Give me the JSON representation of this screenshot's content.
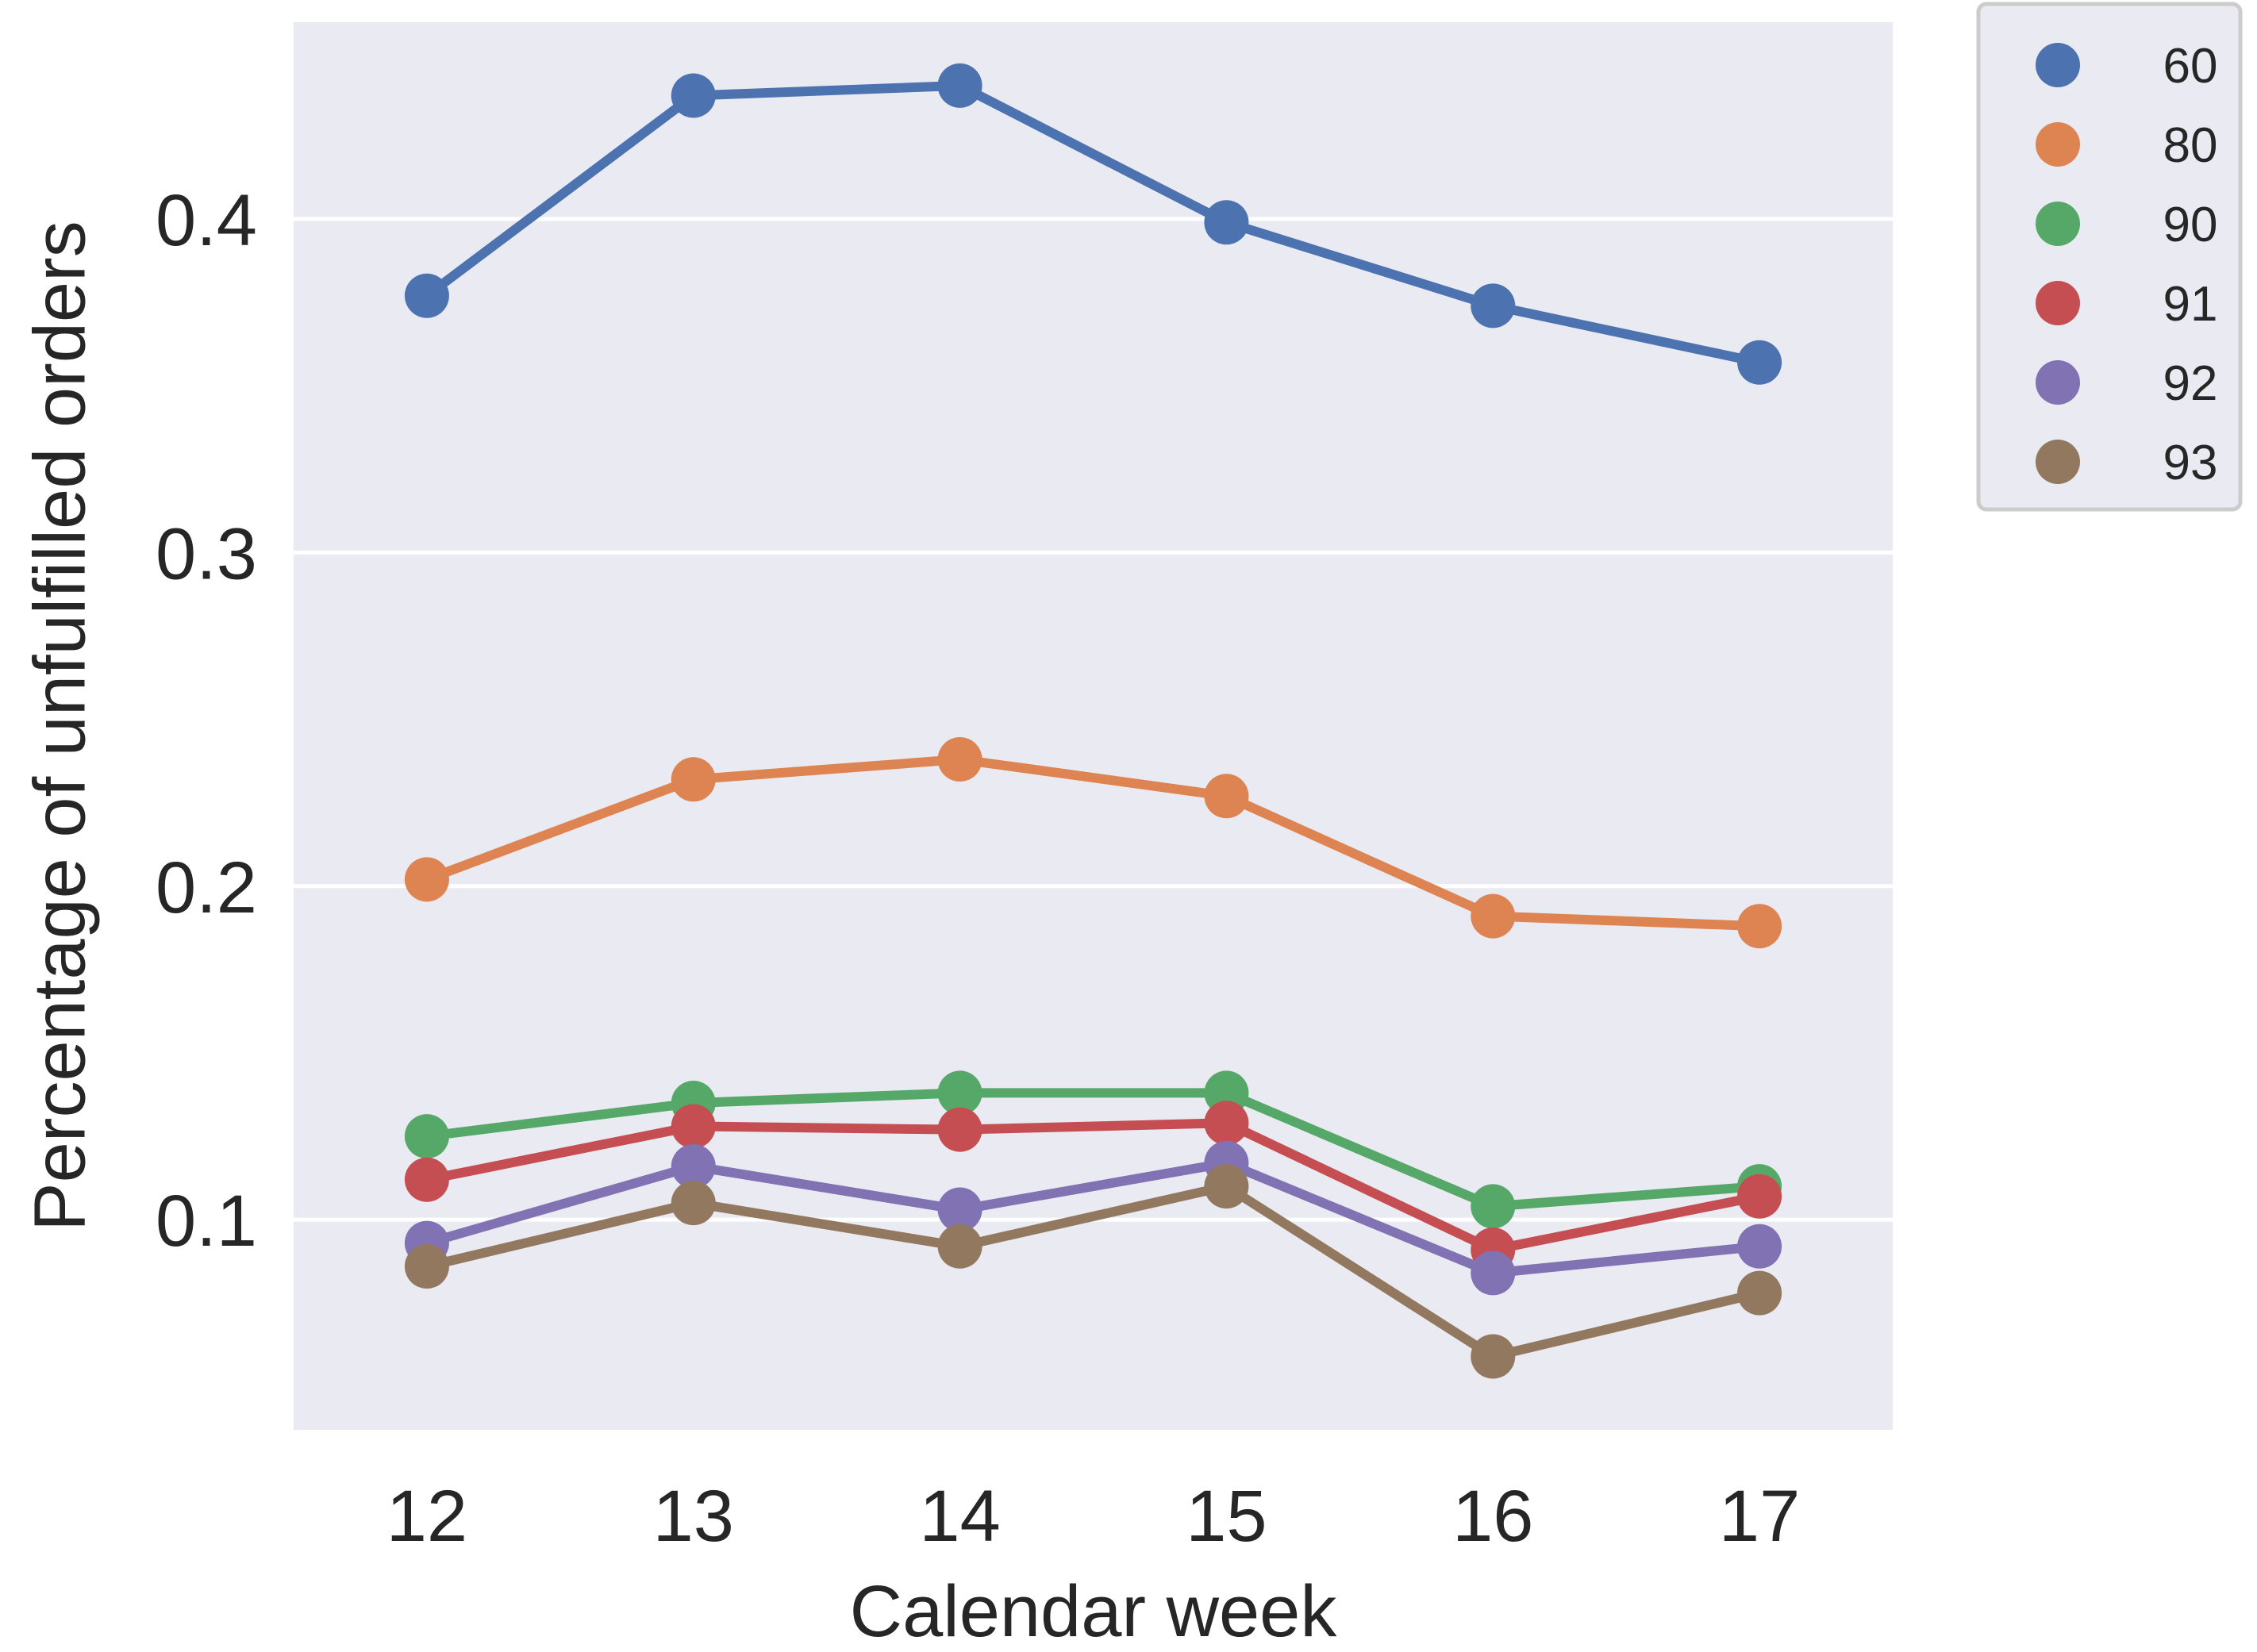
{
  "chart_data": {
    "type": "line",
    "title": "",
    "xlabel": "Calendar week",
    "ylabel": "Percentage of unfulfilled orders",
    "categories": [
      "12",
      "13",
      "14",
      "15",
      "16",
      "17"
    ],
    "xlim": [
      11.5,
      17.5
    ],
    "ylim": [
      0.037,
      0.459
    ],
    "yticks": [
      0.1,
      0.2,
      0.3,
      0.4
    ],
    "ytick_labels": [
      "0.1",
      "0.2",
      "0.3",
      "0.4"
    ],
    "grid": true,
    "legend_position": "outside-top-right",
    "series": [
      {
        "name": "60",
        "color": "#4c72b0",
        "values": [
          0.377,
          0.437,
          0.44,
          0.399,
          0.374,
          0.357
        ]
      },
      {
        "name": "80",
        "color": "#dd8452",
        "values": [
          0.202,
          0.232,
          0.238,
          0.227,
          0.191,
          0.188
        ]
      },
      {
        "name": "90",
        "color": "#55a868",
        "values": [
          0.125,
          0.135,
          0.138,
          0.138,
          0.104,
          0.11
        ]
      },
      {
        "name": "91",
        "color": "#c44e52",
        "values": [
          0.112,
          0.128,
          0.127,
          0.129,
          0.091,
          0.107
        ]
      },
      {
        "name": "92",
        "color": "#8172b3",
        "values": [
          0.093,
          0.116,
          0.103,
          0.117,
          0.084,
          0.092
        ]
      },
      {
        "name": "93",
        "color": "#937860",
        "values": [
          0.086,
          0.105,
          0.092,
          0.11,
          0.059,
          0.078
        ]
      }
    ]
  },
  "colors": {
    "plot_background": "#eaeaf2",
    "grid": "#ffffff",
    "text": "#262626",
    "legend_border": "#cccccc"
  }
}
